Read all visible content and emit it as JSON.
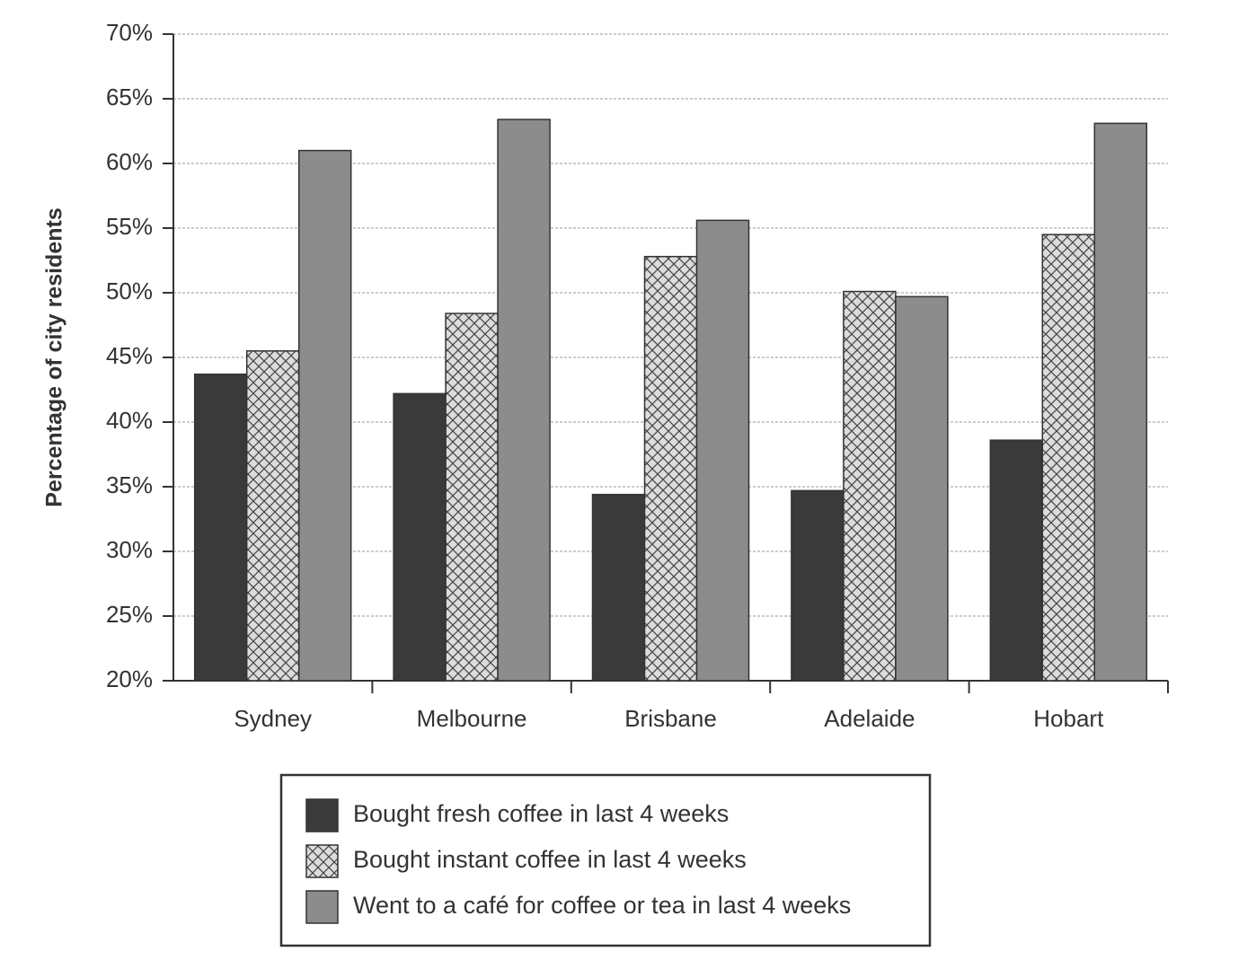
{
  "chart_data": {
    "type": "bar",
    "y_label": "Percentage of city residents",
    "categories": [
      "Sydney",
      "Melbourne",
      "Brisbane",
      "Adelaide",
      "Hobart"
    ],
    "series": [
      {
        "name": "Bought fresh coffee in last 4 weeks",
        "color": "#3a3a3a",
        "values": [
          43.7,
          42.2,
          34.4,
          34.7,
          38.6
        ]
      },
      {
        "name": "Bought instant coffee in last 4 weeks",
        "color": "#dcdcdc",
        "pattern": "crosshatch",
        "values": [
          45.5,
          48.4,
          52.8,
          50.1,
          54.5
        ]
      },
      {
        "name": "Went to a café for coffee or tea in last 4 weeks",
        "color": "#8c8c8c",
        "values": [
          61,
          63.4,
          55.6,
          49.7,
          63.1
        ]
      }
    ],
    "ylim": [
      20,
      70
    ],
    "yticks": [
      {
        "value": 20,
        "label": "20%"
      },
      {
        "value": 25,
        "label": "25%"
      },
      {
        "value": 30,
        "label": "30%"
      },
      {
        "value": 35,
        "label": "35%"
      },
      {
        "value": 40,
        "label": "40%"
      },
      {
        "value": 45,
        "label": "45%"
      },
      {
        "value": 50,
        "label": "50%"
      },
      {
        "value": 55,
        "label": "55%"
      },
      {
        "value": 60,
        "label": "60%"
      },
      {
        "value": 65,
        "label": "65%"
      },
      {
        "value": 70,
        "label": "70%"
      }
    ],
    "grid": true,
    "legend": "bottom"
  }
}
